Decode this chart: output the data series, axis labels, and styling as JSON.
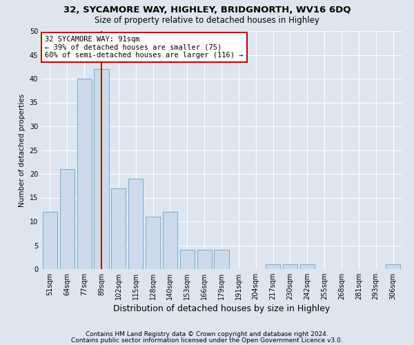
{
  "title1": "32, SYCAMORE WAY, HIGHLEY, BRIDGNORTH, WV16 6DQ",
  "title2": "Size of property relative to detached houses in Highley",
  "xlabel": "Distribution of detached houses by size in Highley",
  "ylabel": "Number of detached properties",
  "footnote1": "Contains HM Land Registry data © Crown copyright and database right 2024.",
  "footnote2": "Contains public sector information licensed under the Open Government Licence v3.0.",
  "bin_labels": [
    "51sqm",
    "64sqm",
    "77sqm",
    "89sqm",
    "102sqm",
    "115sqm",
    "128sqm",
    "140sqm",
    "153sqm",
    "166sqm",
    "179sqm",
    "191sqm",
    "204sqm",
    "217sqm",
    "230sqm",
    "242sqm",
    "255sqm",
    "268sqm",
    "281sqm",
    "293sqm",
    "306sqm"
  ],
  "bar_values": [
    12,
    21,
    40,
    42,
    17,
    19,
    11,
    12,
    4,
    4,
    4,
    0,
    0,
    1,
    1,
    1,
    0,
    0,
    0,
    0,
    1
  ],
  "bar_color": "#ccdaeb",
  "bar_edge_color": "#7aa8cc",
  "property_bin_index": 3,
  "vline_color": "#cc0000",
  "annotation_text": "32 SYCAMORE WAY: 91sqm\n← 39% of detached houses are smaller (75)\n60% of semi-detached houses are larger (116) →",
  "annotation_box_color": "white",
  "annotation_box_edge_color": "#cc0000",
  "ylim": [
    0,
    50
  ],
  "yticks": [
    0,
    5,
    10,
    15,
    20,
    25,
    30,
    35,
    40,
    45,
    50
  ],
  "background_color": "#dde6f0",
  "grid_color": "white",
  "title1_fontsize": 9.5,
  "title2_fontsize": 8.5,
  "xlabel_fontsize": 9,
  "ylabel_fontsize": 7.5,
  "tick_fontsize": 7,
  "annot_fontsize": 7.5,
  "footnote_fontsize": 6.5
}
